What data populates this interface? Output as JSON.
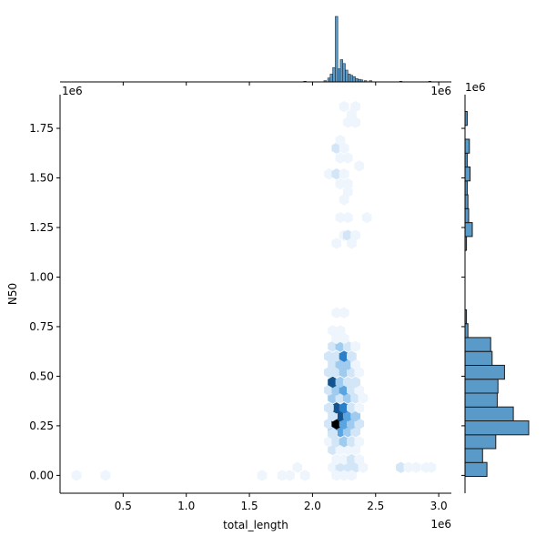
{
  "chart_data": {
    "type": "hexbin",
    "xlabel": "total_length",
    "ylabel": "N50",
    "x_offset_text": "1e6",
    "y_offset_text": "1e6",
    "xlim": [
      0.0,
      3.1
    ],
    "ylim": [
      -0.09,
      1.92
    ],
    "x_ticks": [
      0.5,
      1.0,
      1.5,
      2.0,
      2.5,
      3.0
    ],
    "x_tick_labels": [
      "0.5",
      "1.0",
      "1.5",
      "2.0",
      "2.5",
      "3.0"
    ],
    "y_ticks": [
      0.0,
      0.25,
      0.5,
      0.75,
      1.0,
      1.25,
      1.5,
      1.75
    ],
    "y_tick_labels": [
      "0.00",
      "0.25",
      "0.50",
      "0.75",
      "1.00",
      "1.25",
      "1.50",
      "1.75"
    ],
    "colors": {
      "hist_fill": "#5a9ac8",
      "hist_edge": "#1a1a1a",
      "hex_scale": [
        "#eef5fc",
        "#d2e6f7",
        "#9fcbef",
        "#5aa5e0",
        "#2a7fc8",
        "#14548e",
        "#0b2f55",
        "#000000"
      ]
    },
    "hexbins": [
      {
        "x": 0.13,
        "y": 0.0,
        "v": 1
      },
      {
        "x": 0.36,
        "y": 0.0,
        "v": 1
      },
      {
        "x": 1.6,
        "y": 0.0,
        "v": 1
      },
      {
        "x": 1.76,
        "y": 0.0,
        "v": 1
      },
      {
        "x": 1.82,
        "y": 0.0,
        "v": 1
      },
      {
        "x": 1.94,
        "y": 0.0,
        "v": 1
      },
      {
        "x": 1.88,
        "y": 0.04,
        "v": 1
      },
      {
        "x": 2.7,
        "y": 0.04,
        "v": 2
      },
      {
        "x": 2.76,
        "y": 0.04,
        "v": 1
      },
      {
        "x": 2.82,
        "y": 0.04,
        "v": 1
      },
      {
        "x": 2.9,
        "y": 0.04,
        "v": 1
      },
      {
        "x": 2.94,
        "y": 0.04,
        "v": 1
      },
      {
        "x": 2.16,
        "y": 0.04,
        "v": 1
      },
      {
        "x": 2.22,
        "y": 0.04,
        "v": 2
      },
      {
        "x": 2.28,
        "y": 0.04,
        "v": 2
      },
      {
        "x": 2.34,
        "y": 0.04,
        "v": 2
      },
      {
        "x": 2.4,
        "y": 0.04,
        "v": 1
      },
      {
        "x": 2.19,
        "y": 0.0,
        "v": 1
      },
      {
        "x": 2.25,
        "y": 0.0,
        "v": 1
      },
      {
        "x": 2.31,
        "y": 0.0,
        "v": 1
      },
      {
        "x": 2.19,
        "y": 0.08,
        "v": 1
      },
      {
        "x": 2.25,
        "y": 0.08,
        "v": 1
      },
      {
        "x": 2.31,
        "y": 0.08,
        "v": 2
      },
      {
        "x": 2.37,
        "y": 0.08,
        "v": 1
      },
      {
        "x": 2.16,
        "y": 0.13,
        "v": 2
      },
      {
        "x": 2.22,
        "y": 0.13,
        "v": 1
      },
      {
        "x": 2.28,
        "y": 0.13,
        "v": 1
      },
      {
        "x": 2.34,
        "y": 0.13,
        "v": 1
      },
      {
        "x": 2.13,
        "y": 0.17,
        "v": 1
      },
      {
        "x": 2.19,
        "y": 0.17,
        "v": 2
      },
      {
        "x": 2.25,
        "y": 0.17,
        "v": 3
      },
      {
        "x": 2.31,
        "y": 0.17,
        "v": 2
      },
      {
        "x": 2.37,
        "y": 0.17,
        "v": 1
      },
      {
        "x": 2.16,
        "y": 0.22,
        "v": 3
      },
      {
        "x": 2.22,
        "y": 0.22,
        "v": 4
      },
      {
        "x": 2.28,
        "y": 0.22,
        "v": 3
      },
      {
        "x": 2.34,
        "y": 0.22,
        "v": 2
      },
      {
        "x": 2.13,
        "y": 0.26,
        "v": 2
      },
      {
        "x": 2.19,
        "y": 0.26,
        "v": 8
      },
      {
        "x": 2.25,
        "y": 0.26,
        "v": 4
      },
      {
        "x": 2.31,
        "y": 0.26,
        "v": 3
      },
      {
        "x": 2.37,
        "y": 0.26,
        "v": 2
      },
      {
        "x": 2.16,
        "y": 0.21,
        "v": 2
      },
      {
        "x": 2.22,
        "y": 0.3,
        "v": 6
      },
      {
        "x": 2.28,
        "y": 0.3,
        "v": 4
      },
      {
        "x": 2.34,
        "y": 0.3,
        "v": 3
      },
      {
        "x": 2.16,
        "y": 0.3,
        "v": 2
      },
      {
        "x": 2.19,
        "y": 0.34,
        "v": 6
      },
      {
        "x": 2.25,
        "y": 0.34,
        "v": 5
      },
      {
        "x": 2.31,
        "y": 0.34,
        "v": 2
      },
      {
        "x": 2.37,
        "y": 0.34,
        "v": 1
      },
      {
        "x": 2.13,
        "y": 0.34,
        "v": 2
      },
      {
        "x": 2.16,
        "y": 0.39,
        "v": 3
      },
      {
        "x": 2.22,
        "y": 0.39,
        "v": 2
      },
      {
        "x": 2.28,
        "y": 0.39,
        "v": 3
      },
      {
        "x": 2.34,
        "y": 0.39,
        "v": 2
      },
      {
        "x": 2.4,
        "y": 0.39,
        "v": 1
      },
      {
        "x": 2.13,
        "y": 0.43,
        "v": 2
      },
      {
        "x": 2.19,
        "y": 0.43,
        "v": 3
      },
      {
        "x": 2.25,
        "y": 0.43,
        "v": 4
      },
      {
        "x": 2.31,
        "y": 0.43,
        "v": 2
      },
      {
        "x": 2.37,
        "y": 0.43,
        "v": 1
      },
      {
        "x": 2.16,
        "y": 0.47,
        "v": 6
      },
      {
        "x": 2.22,
        "y": 0.47,
        "v": 3
      },
      {
        "x": 2.28,
        "y": 0.47,
        "v": 2
      },
      {
        "x": 2.34,
        "y": 0.47,
        "v": 2
      },
      {
        "x": 2.13,
        "y": 0.52,
        "v": 2
      },
      {
        "x": 2.19,
        "y": 0.52,
        "v": 2
      },
      {
        "x": 2.25,
        "y": 0.52,
        "v": 3
      },
      {
        "x": 2.31,
        "y": 0.52,
        "v": 2
      },
      {
        "x": 2.37,
        "y": 0.52,
        "v": 1
      },
      {
        "x": 2.16,
        "y": 0.56,
        "v": 2
      },
      {
        "x": 2.22,
        "y": 0.56,
        "v": 3
      },
      {
        "x": 2.28,
        "y": 0.56,
        "v": 3
      },
      {
        "x": 2.34,
        "y": 0.56,
        "v": 1
      },
      {
        "x": 2.13,
        "y": 0.6,
        "v": 2
      },
      {
        "x": 2.19,
        "y": 0.6,
        "v": 2
      },
      {
        "x": 2.25,
        "y": 0.6,
        "v": 5
      },
      {
        "x": 2.31,
        "y": 0.6,
        "v": 2
      },
      {
        "x": 2.16,
        "y": 0.65,
        "v": 2
      },
      {
        "x": 2.22,
        "y": 0.65,
        "v": 3
      },
      {
        "x": 2.28,
        "y": 0.65,
        "v": 2
      },
      {
        "x": 2.34,
        "y": 0.65,
        "v": 1
      },
      {
        "x": 2.19,
        "y": 0.69,
        "v": 1
      },
      {
        "x": 2.25,
        "y": 0.69,
        "v": 1
      },
      {
        "x": 2.16,
        "y": 0.73,
        "v": 1
      },
      {
        "x": 2.22,
        "y": 0.73,
        "v": 1
      },
      {
        "x": 2.19,
        "y": 0.82,
        "v": 1
      },
      {
        "x": 2.25,
        "y": 0.82,
        "v": 1
      },
      {
        "x": 2.19,
        "y": 1.17,
        "v": 1
      },
      {
        "x": 2.25,
        "y": 1.21,
        "v": 1
      },
      {
        "x": 2.28,
        "y": 1.21,
        "v": 2
      },
      {
        "x": 2.34,
        "y": 1.21,
        "v": 1
      },
      {
        "x": 2.31,
        "y": 1.17,
        "v": 1
      },
      {
        "x": 2.22,
        "y": 1.3,
        "v": 1
      },
      {
        "x": 2.28,
        "y": 1.3,
        "v": 1
      },
      {
        "x": 2.43,
        "y": 1.3,
        "v": 1
      },
      {
        "x": 2.25,
        "y": 1.39,
        "v": 1
      },
      {
        "x": 2.28,
        "y": 1.43,
        "v": 1
      },
      {
        "x": 2.22,
        "y": 1.47,
        "v": 1
      },
      {
        "x": 2.28,
        "y": 1.47,
        "v": 1
      },
      {
        "x": 2.13,
        "y": 1.52,
        "v": 1
      },
      {
        "x": 2.19,
        "y": 1.52,
        "v": 2
      },
      {
        "x": 2.25,
        "y": 1.52,
        "v": 1
      },
      {
        "x": 2.37,
        "y": 1.56,
        "v": 1
      },
      {
        "x": 2.22,
        "y": 1.6,
        "v": 1
      },
      {
        "x": 2.28,
        "y": 1.6,
        "v": 1
      },
      {
        "x": 2.19,
        "y": 1.65,
        "v": 2
      },
      {
        "x": 2.25,
        "y": 1.65,
        "v": 1
      },
      {
        "x": 2.22,
        "y": 1.69,
        "v": 1
      },
      {
        "x": 2.28,
        "y": 1.78,
        "v": 1
      },
      {
        "x": 2.34,
        "y": 1.78,
        "v": 1
      },
      {
        "x": 2.31,
        "y": 1.82,
        "v": 1
      },
      {
        "x": 2.25,
        "y": 1.86,
        "v": 1
      },
      {
        "x": 2.34,
        "y": 1.86,
        "v": 1
      }
    ],
    "x_marginal": {
      "bins": [
        {
          "x": 1.94,
          "h": 1
        },
        {
          "x": 2.1,
          "h": 2
        },
        {
          "x": 2.13,
          "h": 6
        },
        {
          "x": 2.15,
          "h": 12
        },
        {
          "x": 2.17,
          "h": 22
        },
        {
          "x": 2.19,
          "h": 100
        },
        {
          "x": 2.21,
          "h": 20
        },
        {
          "x": 2.23,
          "h": 34
        },
        {
          "x": 2.25,
          "h": 28
        },
        {
          "x": 2.27,
          "h": 18
        },
        {
          "x": 2.29,
          "h": 12
        },
        {
          "x": 2.31,
          "h": 10
        },
        {
          "x": 2.33,
          "h": 8
        },
        {
          "x": 2.35,
          "h": 5
        },
        {
          "x": 2.37,
          "h": 4
        },
        {
          "x": 2.39,
          "h": 3
        },
        {
          "x": 2.42,
          "h": 2
        },
        {
          "x": 2.46,
          "h": 2
        },
        {
          "x": 2.7,
          "h": 1
        },
        {
          "x": 2.93,
          "h": 1
        }
      ],
      "bin_width": 0.02
    },
    "y_marginal": {
      "bins": [
        {
          "y": 0.03,
          "w": 30
        },
        {
          "y": 0.1,
          "w": 24
        },
        {
          "y": 0.17,
          "w": 42
        },
        {
          "y": 0.24,
          "w": 87
        },
        {
          "y": 0.31,
          "w": 66
        },
        {
          "y": 0.38,
          "w": 44
        },
        {
          "y": 0.45,
          "w": 45
        },
        {
          "y": 0.52,
          "w": 54
        },
        {
          "y": 0.59,
          "w": 37
        },
        {
          "y": 0.66,
          "w": 35
        },
        {
          "y": 0.73,
          "w": 4
        },
        {
          "y": 0.8,
          "w": 2
        },
        {
          "y": 1.17,
          "w": 2
        },
        {
          "y": 1.24,
          "w": 10
        },
        {
          "y": 1.31,
          "w": 5
        },
        {
          "y": 1.38,
          "w": 4
        },
        {
          "y": 1.45,
          "w": 3
        },
        {
          "y": 1.52,
          "w": 7
        },
        {
          "y": 1.59,
          "w": 3
        },
        {
          "y": 1.66,
          "w": 6
        },
        {
          "y": 1.8,
          "w": 3
        }
      ],
      "bin_height": 0.07
    }
  }
}
